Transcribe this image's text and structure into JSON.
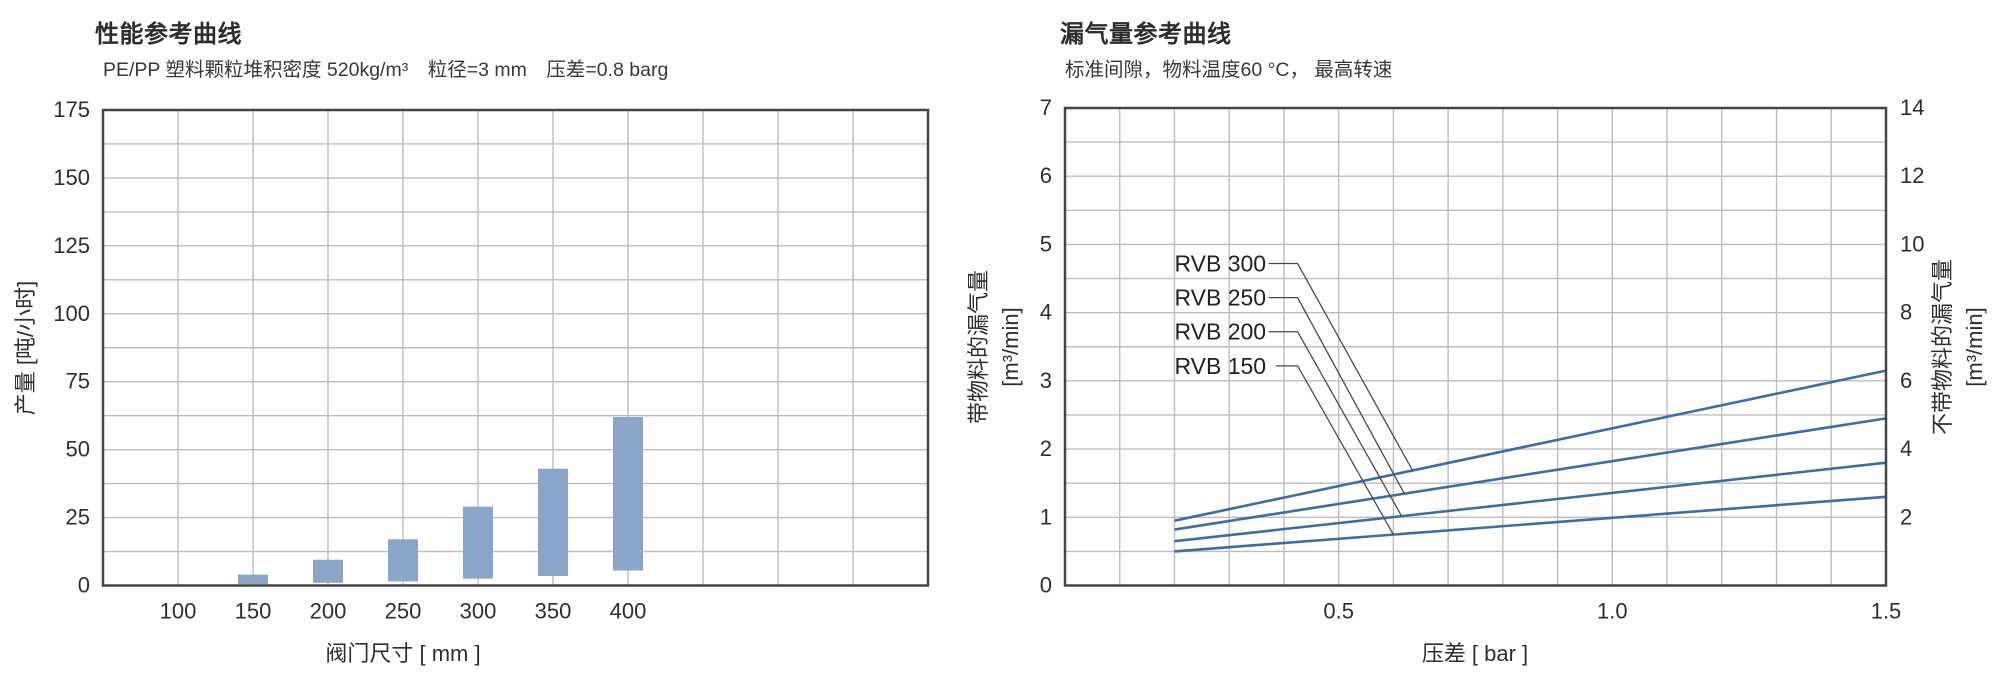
{
  "colors": {
    "background": "#ffffff",
    "text": "#2e2e2e",
    "grid": "#bdbdbd",
    "plot_border": "#454545"
  },
  "chart_data": [
    {
      "type": "bar",
      "title": "性能参考曲线",
      "subtitle": "PE/PP 塑料颗粒堆积密度 520kg/m³　粒径=3 mm　压差=0.8 barg",
      "xlabel": "阀门尺寸 [ mm ]",
      "ylabel": "产量 [吨/小时]",
      "xlim": [
        50,
        600
      ],
      "ylim": [
        0,
        175
      ],
      "x_grid_step": 50,
      "y_grid_step": 12.5,
      "grid": "on",
      "x_ticks": [
        "100",
        "150",
        "200",
        "250",
        "300",
        "350",
        "400"
      ],
      "x_tick_values": [
        100,
        150,
        200,
        250,
        300,
        350,
        400
      ],
      "y_ticks": [
        0,
        25,
        50,
        75,
        100,
        125,
        150,
        175
      ],
      "bar_width_mm": 20,
      "bars": [
        {
          "valve_size": 150,
          "range": [
            0.5,
            4
          ]
        },
        {
          "valve_size": 200,
          "range": [
            1,
            9.5
          ]
        },
        {
          "valve_size": 250,
          "range": [
            1.5,
            17
          ]
        },
        {
          "valve_size": 300,
          "range": [
            2.5,
            29
          ]
        },
        {
          "valve_size": 350,
          "range": [
            3.5,
            43
          ]
        },
        {
          "valve_size": 400,
          "range": [
            5.5,
            62
          ]
        }
      ],
      "colors": {
        "bar": "#8aa5c9"
      }
    },
    {
      "type": "line",
      "title": "漏气量参考曲线",
      "subtitle": "标准间隙，物料温度60 °C， 最高转速",
      "xlabel": "压差 [ bar ]",
      "ylabel_left": "带物料的漏气量",
      "ylabel_left_unit": "[m³/min]",
      "ylabel_right": "不带物料的漏气量",
      "ylabel_right_unit": "[m³/min]",
      "xlim": [
        0,
        1.5
      ],
      "ylim_left": [
        0,
        7
      ],
      "ylim_right": [
        0,
        14
      ],
      "x_grid_step": 0.1,
      "y_grid_step": 0.5,
      "grid": "on",
      "x_ticks": [
        "0.5",
        "1.0",
        "1.5"
      ],
      "x_tick_values": [
        0.5,
        1.0,
        1.5
      ],
      "y_ticks_left": [
        0,
        1,
        2,
        3,
        4,
        5,
        6,
        7
      ],
      "y_ticks_right": [
        2,
        4,
        6,
        8,
        10,
        12,
        14
      ],
      "series": [
        {
          "name": "RVB 300",
          "points": [
            [
              0.2,
              0.95
            ],
            [
              1.5,
              3.15
            ]
          ]
        },
        {
          "name": "RVB 250",
          "points": [
            [
              0.2,
              0.82
            ],
            [
              1.5,
              2.45
            ]
          ]
        },
        {
          "name": "RVB 200",
          "points": [
            [
              0.2,
              0.65
            ],
            [
              1.5,
              1.8
            ]
          ]
        },
        {
          "name": "RVB 150",
          "points": [
            [
              0.2,
              0.5
            ],
            [
              1.5,
              1.3
            ]
          ]
        }
      ],
      "labels": [
        {
          "text": "RVB 300",
          "x": 0.2,
          "y": 4.72,
          "leader_x1": 0.372,
          "leader_x2": 0.425,
          "target_x": 0.635
        },
        {
          "text": "RVB 250",
          "x": 0.2,
          "y": 4.22,
          "leader_x1": 0.372,
          "leader_x2": 0.425,
          "target_x": 0.62
        },
        {
          "text": "RVB 200",
          "x": 0.2,
          "y": 3.72,
          "leader_x1": 0.372,
          "leader_x2": 0.425,
          "target_x": 0.615
        },
        {
          "text": "RVB 150",
          "x": 0.2,
          "y": 3.22,
          "leader_x1": 0.385,
          "leader_x2": 0.425,
          "target_x": 0.6
        }
      ],
      "colors": {
        "line": "#3c6da6",
        "leader": "#4a4a4a"
      }
    }
  ]
}
